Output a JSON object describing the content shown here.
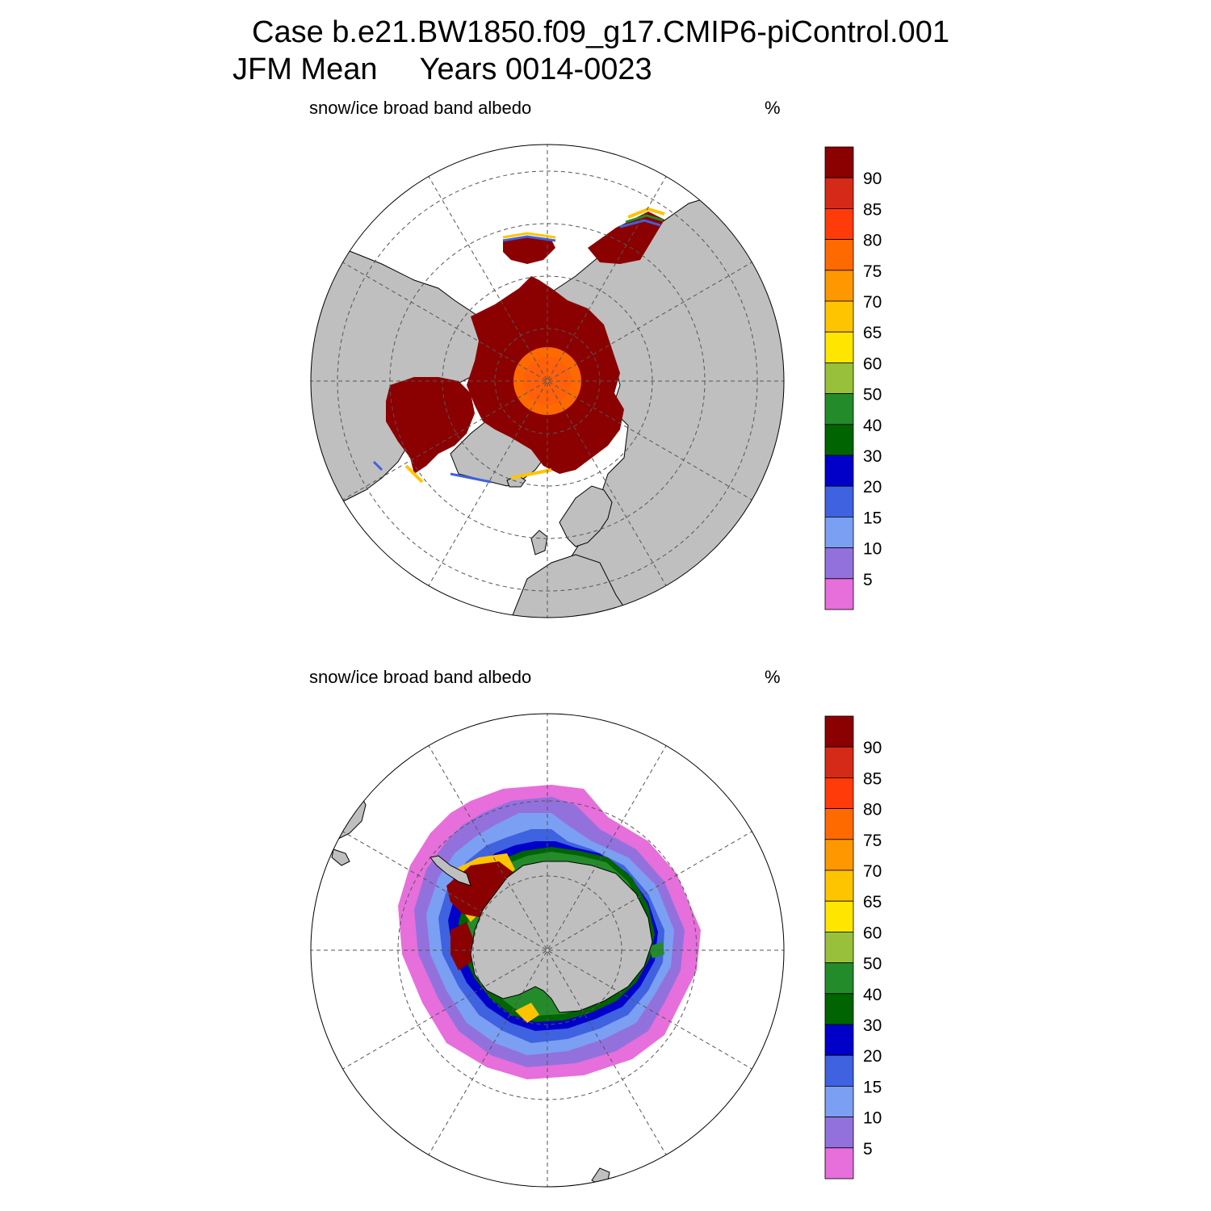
{
  "title": {
    "line1": "Case b.e21.BW1850.f09_g17.CMIP6-piControl.001",
    "season": "JFM Mean",
    "years": "Years 0014-0023"
  },
  "colorbar": {
    "levels": [
      "90",
      "85",
      "80",
      "75",
      "70",
      "65",
      "60",
      "50",
      "40",
      "30",
      "20",
      "15",
      "10",
      "5"
    ],
    "colors": [
      "#8b0000",
      "#d42a17",
      "#ff3b0a",
      "#ff6a00",
      "#ff9700",
      "#ffc400",
      "#ffe500",
      "#99c03a",
      "#238b2a",
      "#006400",
      "#0000c8",
      "#3f62e0",
      "#7b9ff2",
      "#9371dd",
      "#e66fdb"
    ]
  },
  "panels": [
    {
      "id": "nh",
      "label": "snow/ice broad band albedo",
      "units": "%"
    },
    {
      "id": "sh",
      "label": "snow/ice broad band albedo",
      "units": "%"
    }
  ],
  "map_colors": {
    "land": "#bfbfbf",
    "ice_max": "#8b0000",
    "coast": "#000000"
  }
}
